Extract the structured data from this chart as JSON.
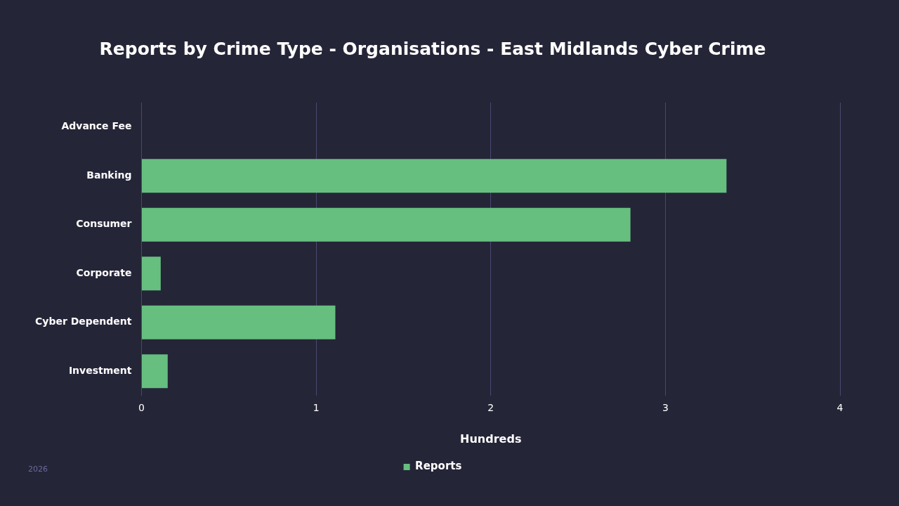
{
  "chart_data": {
    "type": "bar",
    "orientation": "horizontal",
    "title": "Reports by Crime Type - Organisations - East Midlands Cyber Crime",
    "xlabel": "Hundreds",
    "categories": [
      "Advance Fee",
      "Banking",
      "Consumer",
      "Corporate",
      "Cyber Dependent",
      "Investment"
    ],
    "series": [
      {
        "name": "Reports",
        "color": "#66bf7f",
        "values": [
          0,
          3.35,
          2.8,
          0.11,
          1.11,
          0.15
        ]
      }
    ],
    "xlim": [
      0,
      4
    ],
    "xticks": [
      0,
      1,
      2,
      3,
      4
    ],
    "grid": "x",
    "legend": "bottom",
    "annotations": [
      "2026"
    ]
  }
}
